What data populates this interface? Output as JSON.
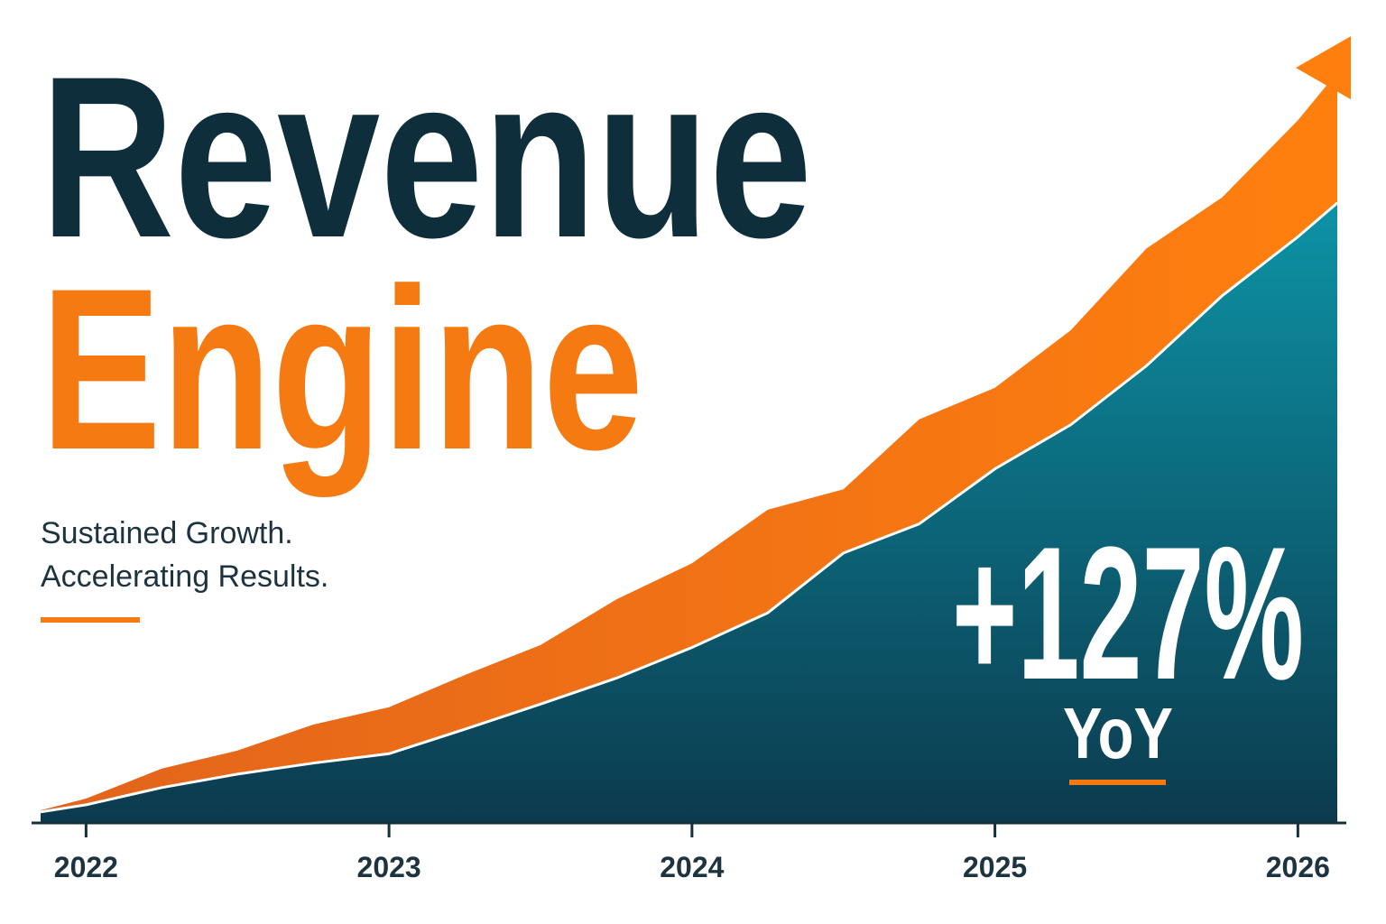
{
  "chart_data": {
    "type": "stacked-area",
    "title": [
      "Revenue",
      "Engine"
    ],
    "subtitle": [
      "Sustained Growth.",
      "Accelerating Results."
    ],
    "annotations": [
      "+127%",
      "YoY"
    ],
    "x": [
      2021.85,
      2022,
      2022.25,
      2022.5,
      2022.75,
      2023,
      2023.25,
      2023.5,
      2023.75,
      2024,
      2024.25,
      2024.5,
      2024.75,
      2025,
      2025.25,
      2025.5,
      2025.75,
      2026,
      2026.13
    ],
    "xlim": [
      2021.85,
      2026.13
    ],
    "xticks": [
      2022,
      2023,
      2024,
      2025,
      2026
    ],
    "ylim": [
      0,
      100
    ],
    "series": [
      {
        "color": "#0e7f93",
        "values": [
          1.4,
          2.3,
          4.5,
          6.2,
          7.6,
          8.8,
          11.9,
          15.1,
          18.4,
          22.3,
          26.7,
          34.3,
          38,
          45,
          50.6,
          58.1,
          67,
          74.5,
          78.8
        ]
      },
      {
        "color": "#f57a12",
        "values": [
          0.2,
          0.8,
          2.4,
          3,
          4.9,
          5.9,
          6.9,
          7.5,
          10,
          10.7,
          13.1,
          8.1,
          13.3,
          10.3,
          12,
          14.9,
          12.5,
          14.8,
          16.6
        ]
      }
    ]
  }
}
